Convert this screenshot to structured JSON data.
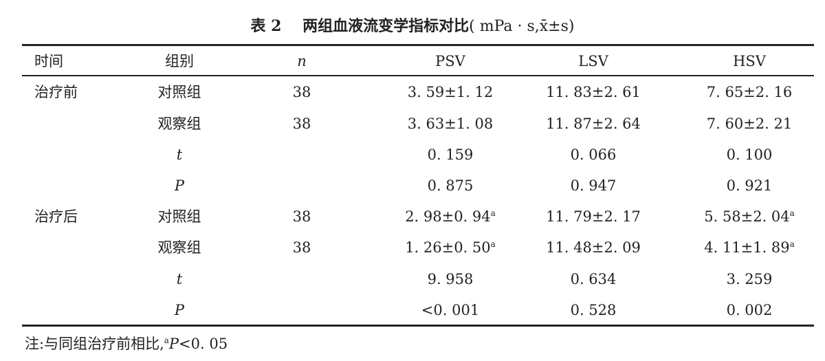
{
  "caption": {
    "label": "表 2",
    "title": "两组血液流变学指标对比",
    "unit": "( mPa · s,x̄±s)"
  },
  "headers": [
    "时间",
    "组别",
    "n",
    "PSV",
    "LSV",
    "HSV"
  ],
  "rows": [
    {
      "time": "治疗前",
      "group": "对照组",
      "n": "38",
      "psv": "3. 59±1. 12",
      "psv_sup": "",
      "lsv": "11. 83±2. 61",
      "lsv_sup": "",
      "hsv": "7. 65±2. 16",
      "hsv_sup": ""
    },
    {
      "time": "",
      "group": "观察组",
      "n": "38",
      "psv": "3. 63±1. 08",
      "psv_sup": "",
      "lsv": "11. 87±2. 64",
      "lsv_sup": "",
      "hsv": "7. 60±2. 21",
      "hsv_sup": ""
    },
    {
      "time": "",
      "group": "t",
      "n": "",
      "psv": "0. 159",
      "psv_sup": "",
      "lsv": "0. 066",
      "lsv_sup": "",
      "hsv": "0. 100",
      "hsv_sup": ""
    },
    {
      "time": "",
      "group": "P",
      "n": "",
      "psv": "0. 875",
      "psv_sup": "",
      "lsv": "0. 947",
      "lsv_sup": "",
      "hsv": "0. 921",
      "hsv_sup": ""
    },
    {
      "time": "治疗后",
      "group": "对照组",
      "n": "38",
      "psv": "2. 98±0. 94",
      "psv_sup": "a",
      "lsv": "11. 79±2. 17",
      "lsv_sup": "",
      "hsv": "5. 58±2. 04",
      "hsv_sup": "a"
    },
    {
      "time": "",
      "group": "观察组",
      "n": "38",
      "psv": "1. 26±0. 50",
      "psv_sup": "a",
      "lsv": "11. 48±2. 09",
      "lsv_sup": "",
      "hsv": "4. 11±1. 89",
      "hsv_sup": "a"
    },
    {
      "time": "",
      "group": "t",
      "n": "",
      "psv": "9. 958",
      "psv_sup": "",
      "lsv": "0. 634",
      "lsv_sup": "",
      "hsv": "3. 259",
      "hsv_sup": ""
    },
    {
      "time": "",
      "group": "P",
      "n": "",
      "psv": "<0. 001",
      "psv_sup": "",
      "lsv": "0. 528",
      "lsv_sup": "",
      "hsv": "0. 002",
      "hsv_sup": ""
    }
  ],
  "note": {
    "prefix": "注:与同组治疗前相比,",
    "sup": "a",
    "stat": "P",
    "text": "<0. 05"
  }
}
